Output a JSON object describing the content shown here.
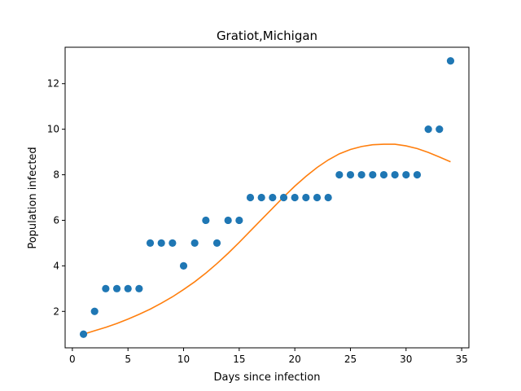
{
  "chart_data": {
    "type": "scatter",
    "title": "Gratiot,Michigan",
    "xlabel": "Days since infection",
    "ylabel": "Population infected",
    "xlim": [
      -0.65,
      35.65
    ],
    "ylim": [
      0.4,
      13.6
    ],
    "xticks": [
      0,
      5,
      10,
      15,
      20,
      25,
      30,
      35
    ],
    "yticks": [
      2,
      4,
      6,
      8,
      10,
      12
    ],
    "grid": false,
    "series": [
      {
        "kind": "scatter",
        "color": "#1f77b4",
        "x": [
          1,
          2,
          3,
          4,
          5,
          6,
          7,
          8,
          9,
          10,
          11,
          12,
          13,
          14,
          15,
          16,
          17,
          18,
          19,
          20,
          21,
          22,
          23,
          24,
          25,
          26,
          27,
          28,
          29,
          30,
          31,
          32,
          33,
          34
        ],
        "y": [
          1,
          2,
          3,
          3,
          3,
          3,
          5,
          5,
          5,
          4,
          5,
          6,
          5,
          6,
          6,
          7,
          7,
          7,
          7,
          7,
          7,
          7,
          7,
          8,
          8,
          8,
          8,
          8,
          8,
          8,
          8,
          10,
          10,
          13
        ]
      },
      {
        "kind": "line",
        "color": "#ff7f0e",
        "x": [
          1,
          2,
          3,
          4,
          5,
          6,
          7,
          8,
          9,
          10,
          11,
          12,
          13,
          14,
          15,
          16,
          17,
          18,
          19,
          20,
          21,
          22,
          23,
          24,
          25,
          26,
          27,
          28,
          29,
          30,
          31,
          32,
          33,
          34
        ],
        "y": [
          1.0,
          1.15,
          1.3,
          1.47,
          1.66,
          1.87,
          2.1,
          2.36,
          2.64,
          2.96,
          3.3,
          3.68,
          4.1,
          4.55,
          5.03,
          5.53,
          6.03,
          6.53,
          7.03,
          7.5,
          7.93,
          8.32,
          8.65,
          8.92,
          9.11,
          9.24,
          9.32,
          9.34,
          9.34,
          9.27,
          9.15,
          8.98,
          8.78,
          8.57
        ]
      }
    ]
  }
}
